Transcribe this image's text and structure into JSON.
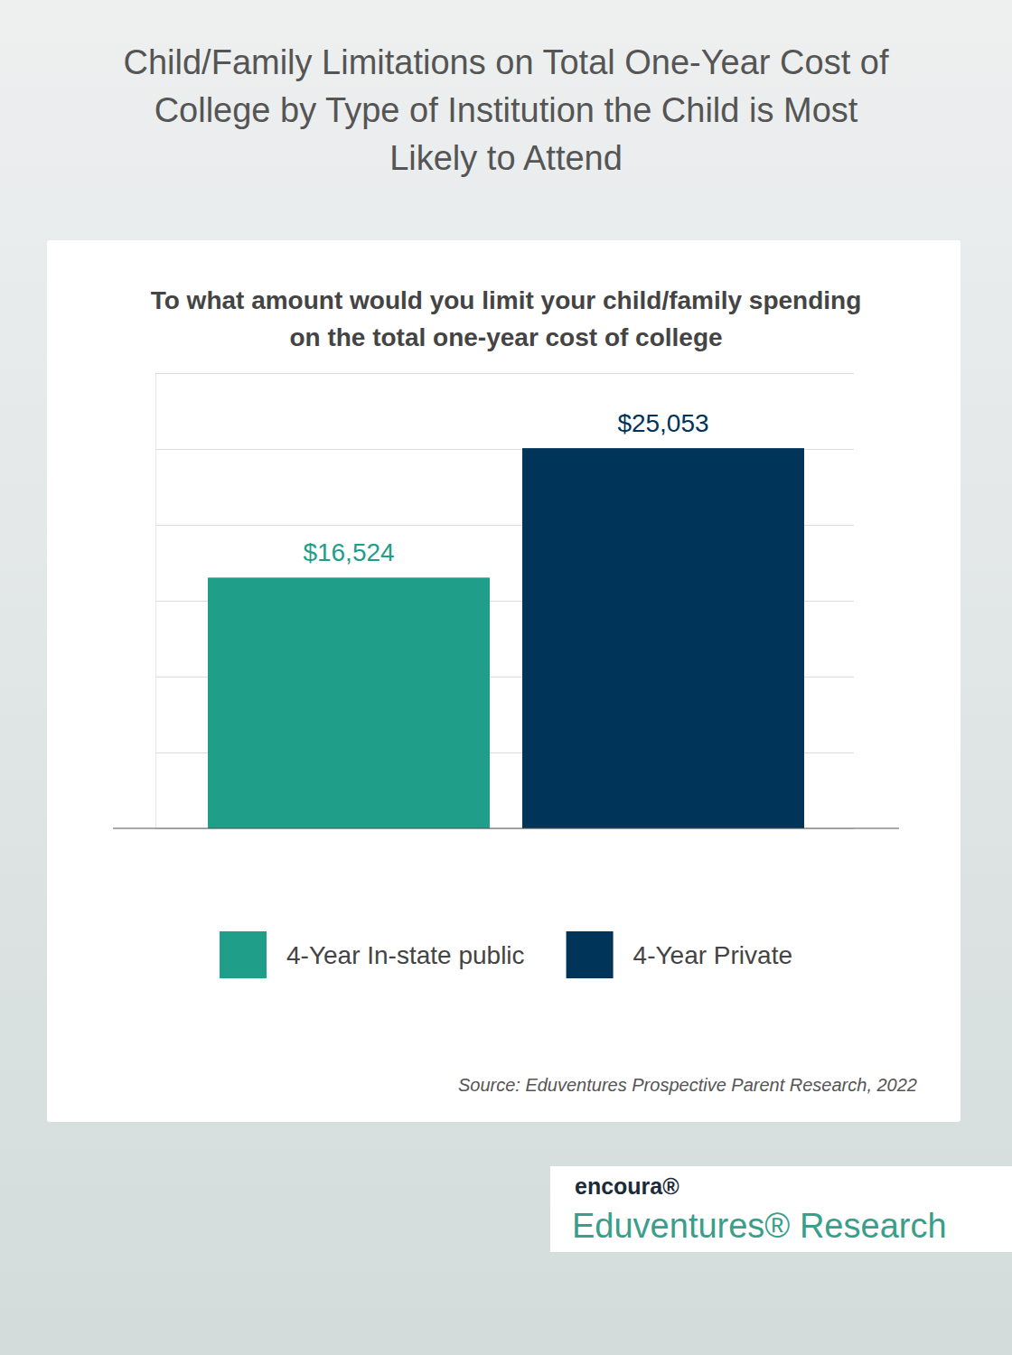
{
  "chart_data": {
    "type": "bar",
    "title": "Child/Family Limitations on Total One-Year Cost of College by Type of Institution the Child is Most Likely to Attend",
    "subtitle": "To what amount would you limit your child/family spending on the total one-year cost of college",
    "categories": [
      "4-Year In-state public",
      "4-Year Private"
    ],
    "values": [
      16524,
      25053
    ],
    "value_labels": [
      "$16,524",
      "$25,053"
    ],
    "colors": [
      "#1f9e8a",
      "#003459"
    ],
    "ylim": [
      0,
      30000
    ],
    "yticks": [
      0,
      5000,
      10000,
      15000,
      20000,
      25000,
      30000
    ],
    "grid": true,
    "tick_labels": false,
    "data_labels": true,
    "legend": "bottom",
    "source": "Source: Eduventures Prospective Parent Research, 2022",
    "annotations": [
      "encoura®",
      "Eduventures® Research"
    ]
  }
}
